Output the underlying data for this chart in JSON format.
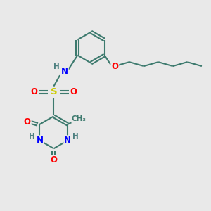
{
  "bg_color": "#e9e9e9",
  "bond_color": "#3d7a6e",
  "bond_width": 1.5,
  "atom_colors": {
    "N": "#0000ff",
    "O": "#ff0000",
    "S": "#cccc00",
    "H_gray": "#4d8080",
    "C": "#3d7a6e"
  },
  "font_size": 8.5,
  "figsize": [
    3.0,
    3.0
  ],
  "dpi": 100,
  "xlim": [
    0,
    10
  ],
  "ylim": [
    0,
    10
  ]
}
